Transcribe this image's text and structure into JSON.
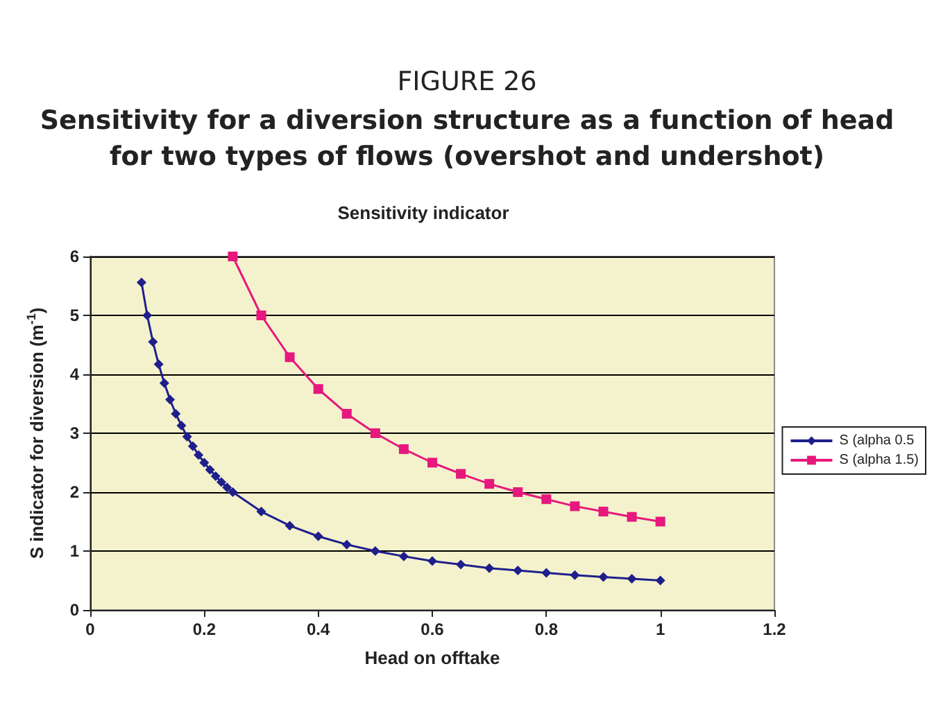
{
  "chart_data": {
    "type": "line",
    "annotations": [
      "FIGURE 26"
    ],
    "title": "Sensitivity for a diversion structure as a function of head for two types of flows (overshot and undershot)",
    "subtitle": "Sensitivity indicator",
    "xlabel": "Head on offtake",
    "ylabel": "S indicator for diversion (m$^{-1}$)",
    "xlim": [
      0,
      1.2
    ],
    "xticks": [
      0,
      0.2,
      0.4,
      0.6,
      0.8,
      1,
      1.2
    ],
    "ylim": [
      0,
      6
    ],
    "yticks": [
      0,
      1,
      2,
      3,
      4,
      5,
      6
    ],
    "grid": "y",
    "legend": "right",
    "line_style": "solid",
    "series": [
      {
        "name": "S (alpha 0.5",
        "color": "#1f1f8c",
        "marker": "diamond",
        "x": [
          0.09,
          0.1,
          0.11,
          0.12,
          0.13,
          0.14,
          0.15,
          0.16,
          0.17,
          0.18,
          0.19,
          0.2,
          0.21,
          0.22,
          0.23,
          0.24,
          0.25,
          0.3,
          0.35,
          0.4,
          0.45,
          0.5,
          0.55,
          0.6,
          0.65,
          0.7,
          0.75,
          0.8,
          0.85,
          0.9,
          0.95,
          1
        ],
        "values": [
          5.56,
          5.0,
          4.55,
          4.17,
          3.85,
          3.57,
          3.33,
          3.13,
          2.94,
          2.78,
          2.63,
          2.5,
          2.38,
          2.27,
          2.17,
          2.08,
          2.0,
          1.67,
          1.43,
          1.25,
          1.11,
          1.0,
          0.91,
          0.83,
          0.77,
          0.71,
          0.67,
          0.63,
          0.59,
          0.56,
          0.53,
          0.5
        ]
      },
      {
        "name": "S (alpha 1.5)",
        "color": "#e6187d",
        "marker": "square",
        "x": [
          0.25,
          0.3,
          0.35,
          0.4,
          0.45,
          0.5,
          0.55,
          0.6,
          0.65,
          0.7,
          0.75,
          0.8,
          0.85,
          0.9,
          0.95,
          1
        ],
        "values": [
          6.0,
          5.0,
          4.29,
          3.75,
          3.33,
          3.0,
          2.73,
          2.5,
          2.31,
          2.14,
          2.0,
          1.88,
          1.76,
          1.67,
          1.58,
          1.5
        ]
      }
    ]
  }
}
